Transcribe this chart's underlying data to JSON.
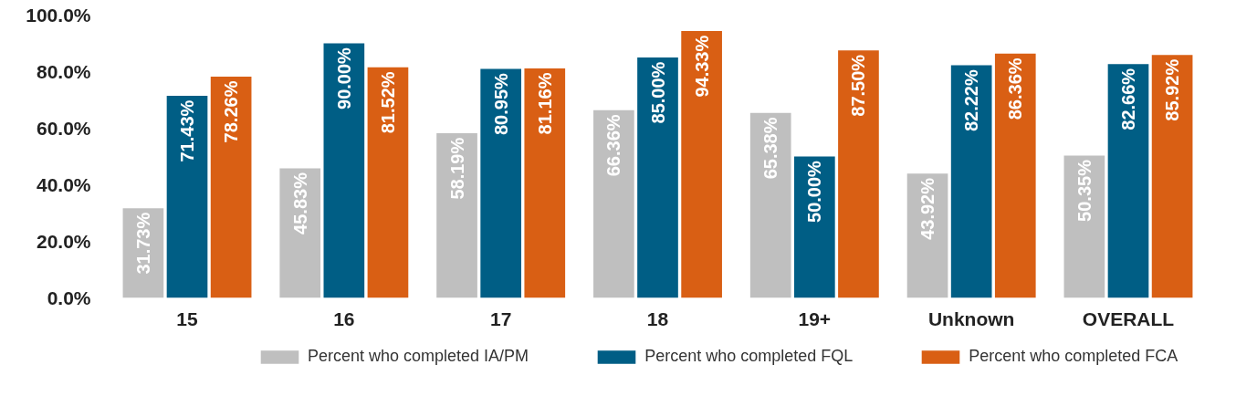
{
  "chart_data": {
    "type": "bar",
    "categories": [
      "15",
      "16",
      "17",
      "18",
      "19+",
      "Unknown",
      "OVERALL"
    ],
    "series": [
      {
        "name": "Percent who completed IA/PM",
        "color": "#bfbfbf",
        "values": [
          31.73,
          45.83,
          58.19,
          66.36,
          65.38,
          43.92,
          50.35
        ],
        "value_labels": [
          "31.73%",
          "45.83%",
          "58.19%",
          "66.36%",
          "65.38%",
          "43.92%",
          "50.35%"
        ]
      },
      {
        "name": "Percent who completed FQL",
        "color": "#005e85",
        "values": [
          71.43,
          90.0,
          80.95,
          85.0,
          50.0,
          82.22,
          82.66
        ],
        "value_labels": [
          "71.43%",
          "90.00%",
          "80.95%",
          "85.00%",
          "50.00%",
          "82.22%",
          "82.66%"
        ]
      },
      {
        "name": "Percent who completed FCA",
        "color": "#d95f14",
        "values": [
          78.26,
          81.52,
          81.16,
          94.33,
          87.5,
          86.36,
          85.92
        ],
        "value_labels": [
          "78.26%",
          "81.52%",
          "81.16%",
          "94.33%",
          "87.50%",
          "86.36%",
          "85.92%"
        ]
      }
    ],
    "ylim": [
      0,
      100
    ],
    "yticks": [
      {
        "value": 0,
        "label": "0.0%"
      },
      {
        "value": 20,
        "label": "20.0%"
      },
      {
        "value": 40,
        "label": "40.0%"
      },
      {
        "value": 60,
        "label": "60.0%"
      },
      {
        "value": 80,
        "label": "80.0%"
      },
      {
        "value": 100,
        "label": "100.0%"
      }
    ],
    "grid": false,
    "legend": "bottom"
  }
}
